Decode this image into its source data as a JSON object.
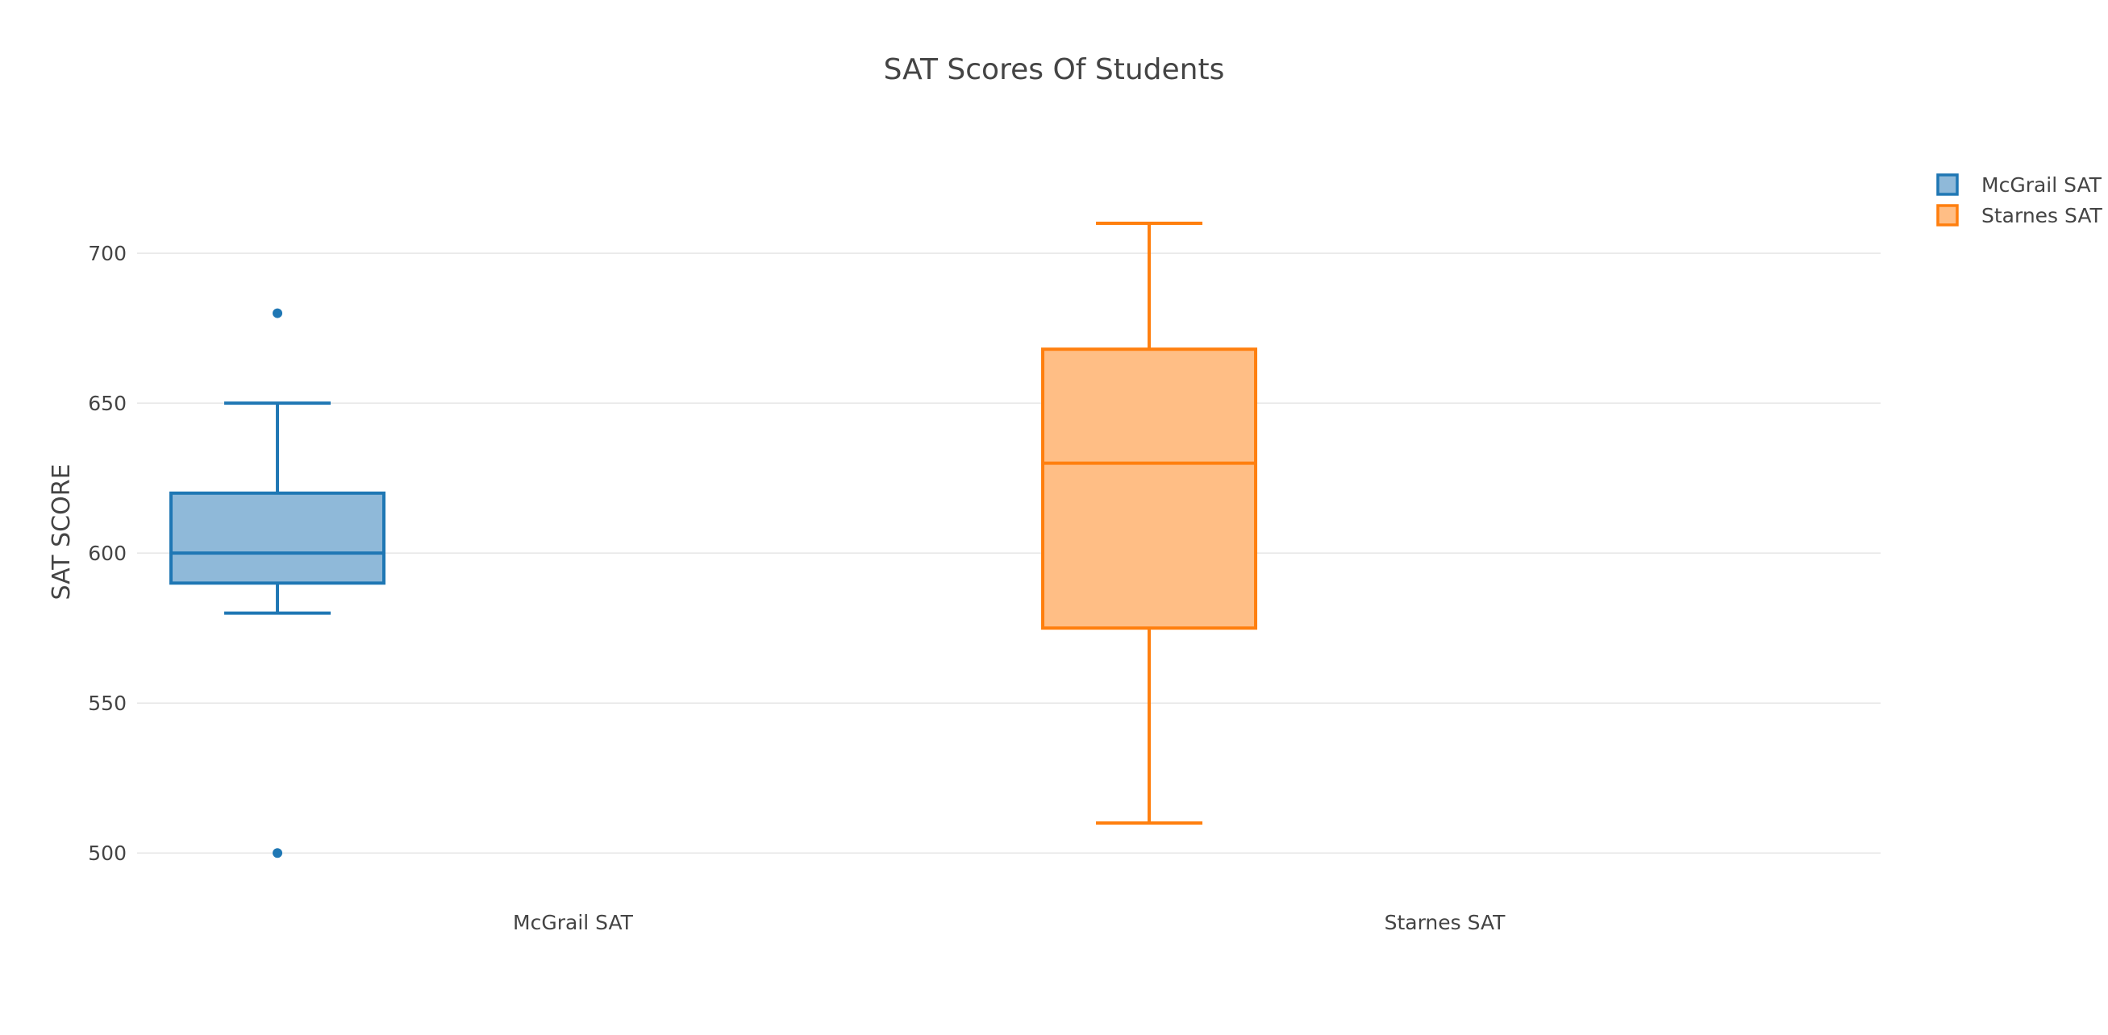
{
  "chart_data": {
    "type": "box",
    "title": "SAT Scores Of Students",
    "xlabel": "",
    "ylabel": "SAT SCORE",
    "ylim": [
      485,
      728
    ],
    "yticks": [
      500,
      550,
      600,
      650,
      700
    ],
    "grid": true,
    "legend_position": "top-right",
    "categories": [
      "McGrail SAT",
      "Starnes SAT"
    ],
    "series": [
      {
        "name": "McGrail SAT",
        "color": "#1f77b4",
        "fill": "#8fb9d9",
        "lower_whisker": 580,
        "q1": 590,
        "median": 600,
        "q3": 620,
        "upper_whisker": 650,
        "outliers": [
          680,
          500
        ]
      },
      {
        "name": "Starnes SAT",
        "color": "#ff7f0e",
        "fill": "#ffbe85",
        "lower_whisker": 510,
        "q1": 575,
        "median": 630,
        "q3": 668,
        "upper_whisker": 710,
        "outliers": []
      }
    ]
  }
}
